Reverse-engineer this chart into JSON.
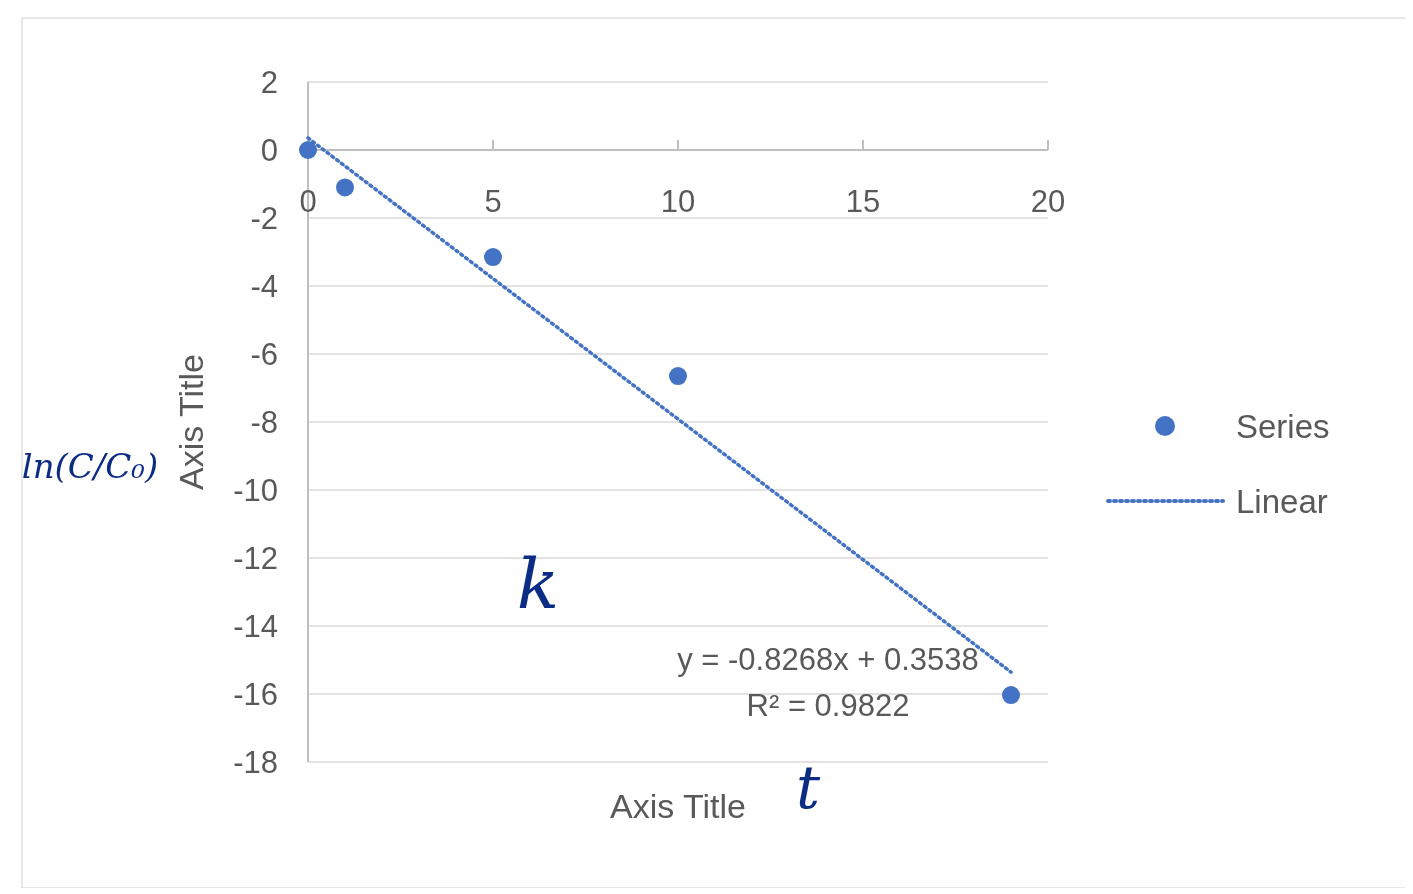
{
  "chart_data": {
    "type": "scatter",
    "xlabel": "Axis Title",
    "ylabel": "Axis Title",
    "xlim": [
      0,
      20
    ],
    "xticks": [
      0,
      5,
      10,
      15,
      20
    ],
    "ylim": [
      -18,
      2
    ],
    "yticks": [
      -18,
      -16,
      -14,
      -12,
      -10,
      -8,
      -6,
      -4,
      -2,
      0,
      2
    ],
    "grid": "y",
    "legend": "right",
    "marker": "circle",
    "series": [
      {
        "name": "Series",
        "color": "#4472c4",
        "x": [
          0,
          1,
          5,
          10,
          19
        ],
        "values": [
          0,
          -1.1,
          -3.15,
          -6.65,
          -16.03
        ]
      },
      {
        "name": "Linear",
        "type": "line",
        "line_style": "dotted",
        "marker": "none",
        "color": "#4472c4",
        "x": [
          0,
          19
        ],
        "values": [
          0.3538,
          -15.3554
        ]
      }
    ],
    "annotations": [
      "y = -0.8268x + 0.3538",
      "R² = 0.9822",
      "ln(C/C₀)",
      "k",
      "t"
    ]
  }
}
